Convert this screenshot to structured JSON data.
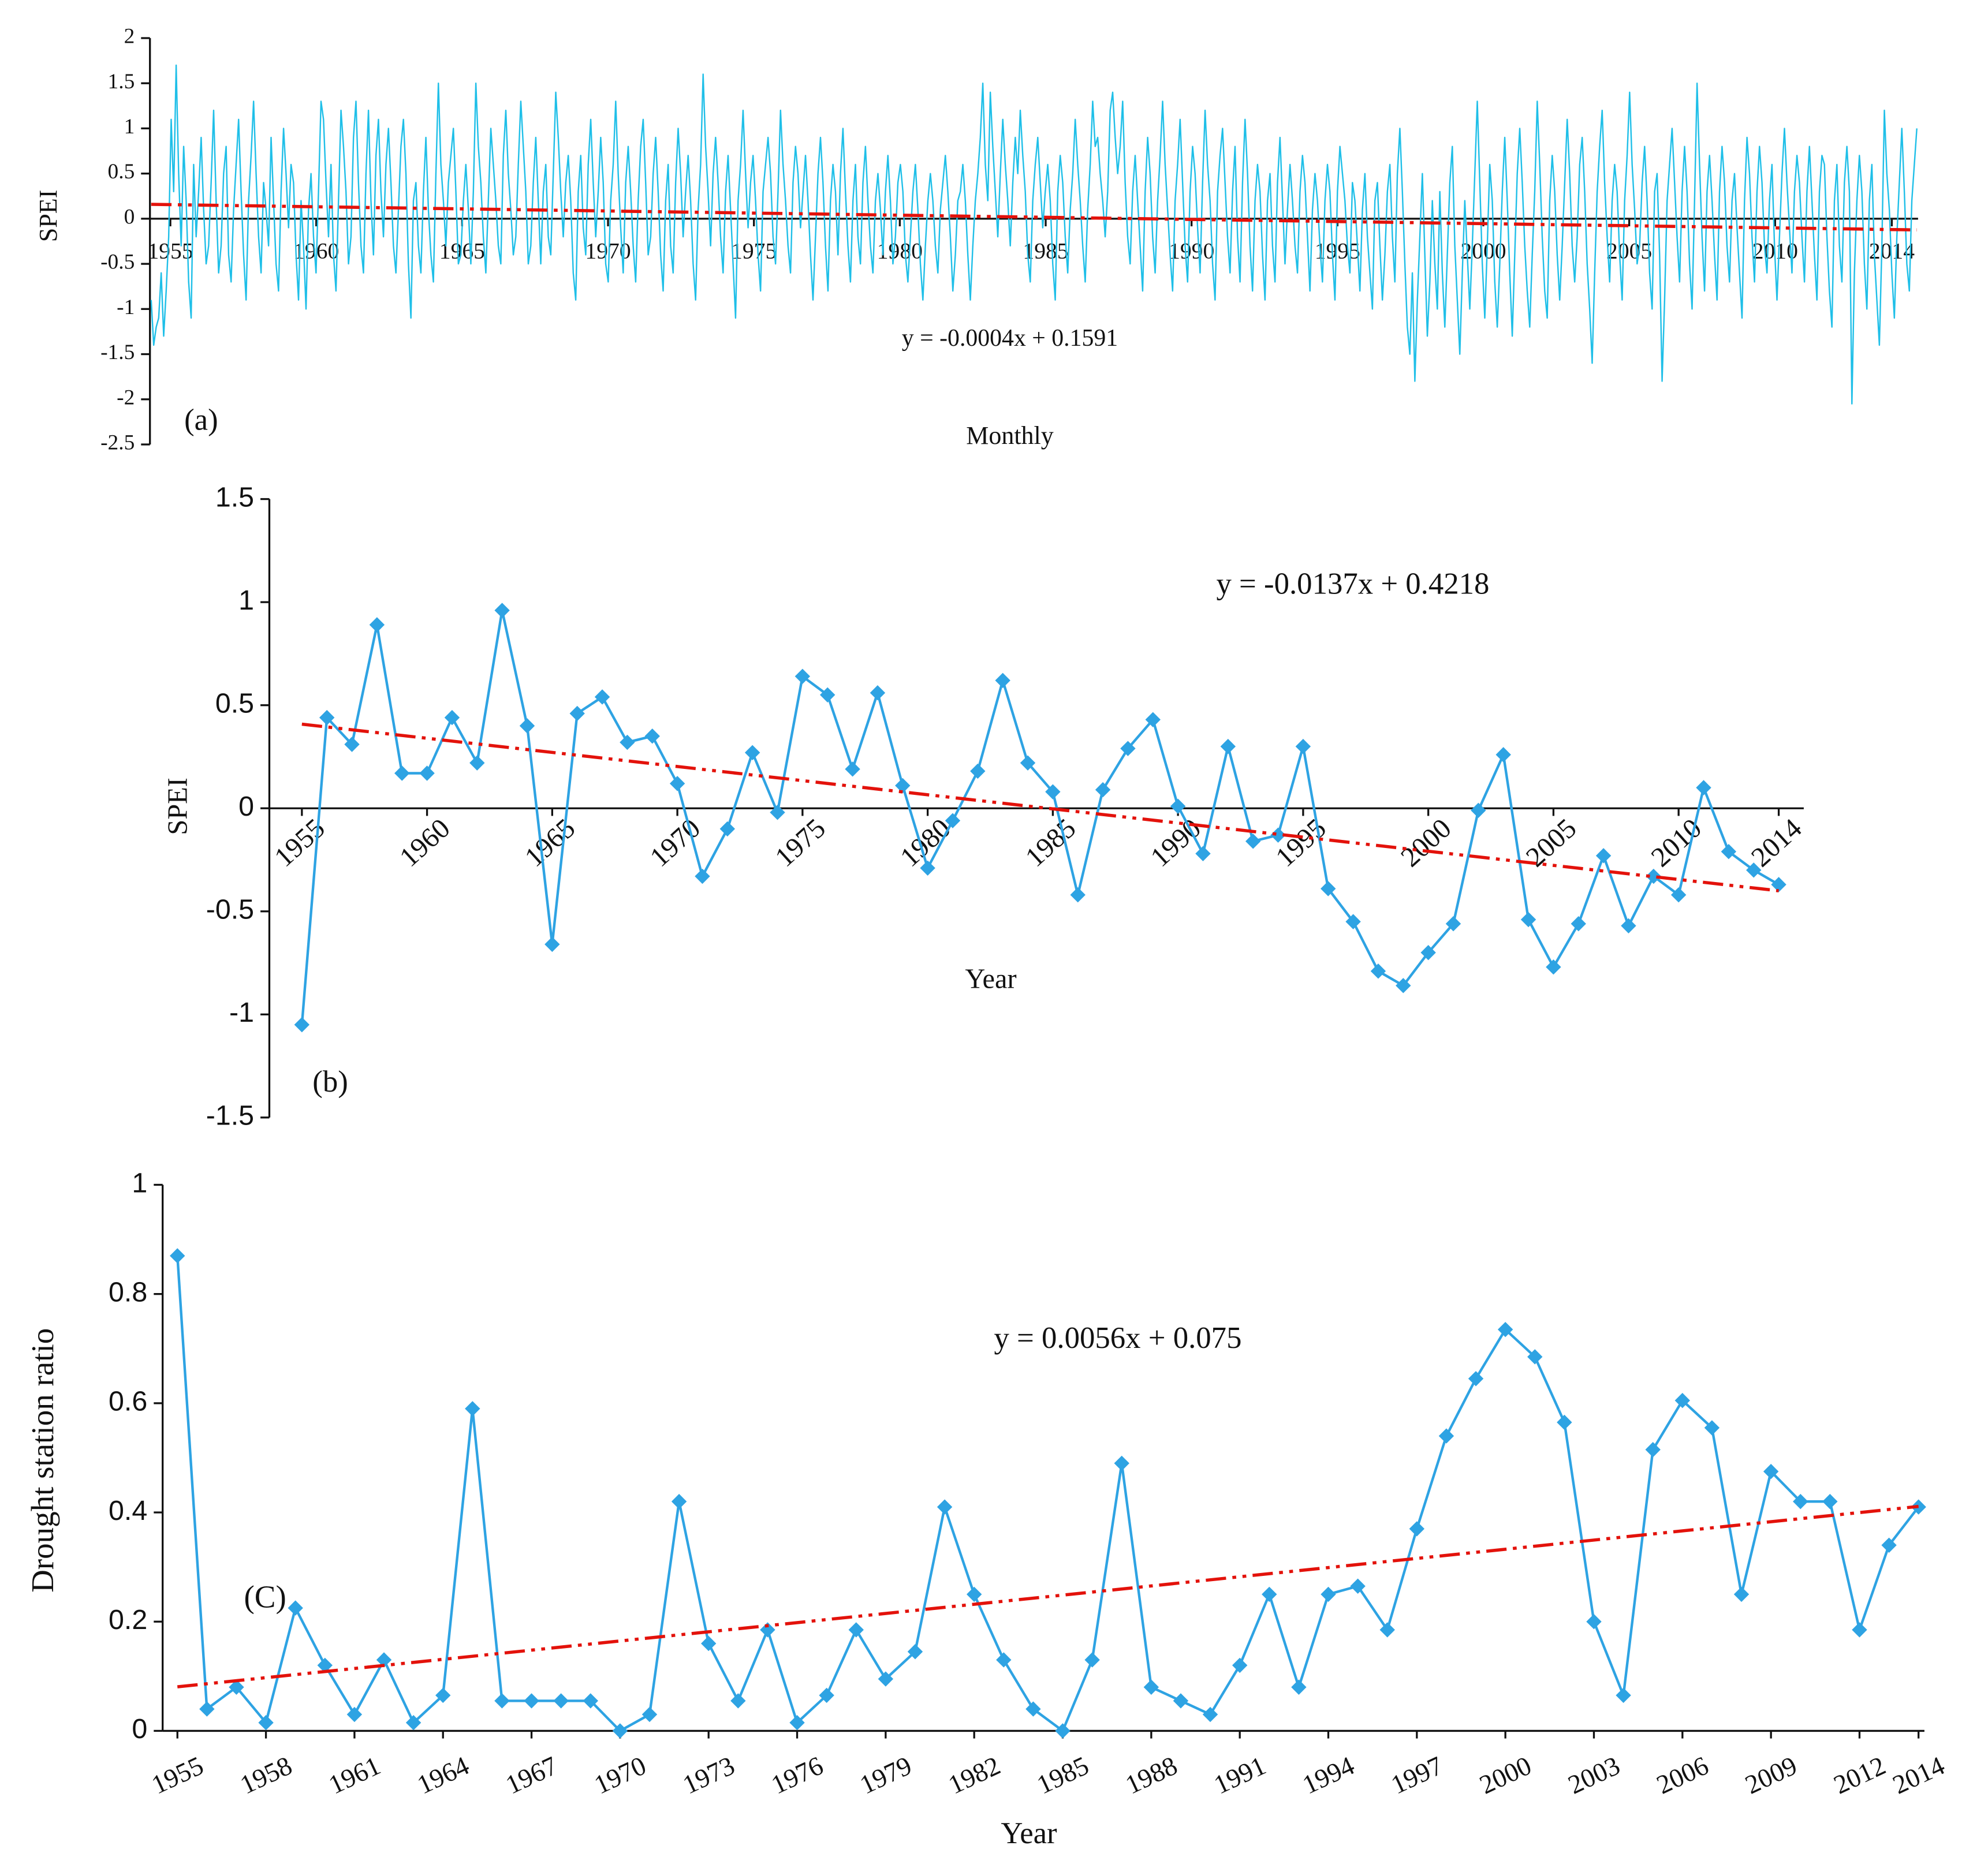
{
  "chart_data": [
    {
      "type": "line",
      "ylabel": "SPEI",
      "xlabel": "Monthly",
      "panel_label": "(a)",
      "equation": "y = -0.0004x + 0.1591",
      "xlim": [
        1954.3,
        2014.9
      ],
      "xticks": [
        1955,
        1960,
        1965,
        1970,
        1975,
        1980,
        1985,
        1990,
        1995,
        2000,
        2005,
        2010,
        2014
      ],
      "ylim": [
        -2.5,
        2
      ],
      "yticks": [
        -2.5,
        -2,
        -1.5,
        -1,
        -0.5,
        0,
        0.5,
        1,
        1.5,
        2
      ],
      "series": [
        {
          "color": "#1fbfe8",
          "values": [
            -0.9,
            -1.4,
            -1.2,
            -1.1,
            -0.6,
            -1.3,
            -0.8,
            -0.2,
            1.1,
            0.3,
            1.7,
            0.5,
            -0.3,
            0.8,
            0.2,
            -0.7,
            -1.1,
            0.6,
            -0.2,
            0.3,
            0.9,
            0.1,
            -0.5,
            -0.3,
            0.4,
            1.2,
            0.2,
            -0.6,
            -0.3,
            0.5,
            0.8,
            -0.4,
            -0.7,
            0.1,
            0.6,
            1.1,
            0.3,
            -0.4,
            -0.9,
            0.2,
            0.7,
            1.3,
            0.5,
            -0.2,
            -0.6,
            0.4,
            0.1,
            -0.3,
            0.9,
            0.2,
            -0.5,
            -0.8,
            0.3,
            1.0,
            0.5,
            -0.1,
            0.6,
            0.4,
            -0.4,
            -0.9,
            0.2,
            -0.3,
            -1.0,
            0.1,
            0.5,
            -0.2,
            -0.6,
            0.3,
            1.3,
            1.1,
            0.4,
            -0.2,
            0.6,
            -0.4,
            -0.8,
            0.2,
            1.2,
            0.8,
            0.3,
            -0.5,
            -0.2,
            0.9,
            1.3,
            0.4,
            -0.3,
            -0.6,
            0.5,
            1.2,
            0.2,
            -0.4,
            0.7,
            1.1,
            0.3,
            -0.2,
            0.6,
            1.0,
            0.4,
            -0.3,
            -0.6,
            0.1,
            0.8,
            1.1,
            0.5,
            -0.5,
            -1.1,
            0.2,
            0.4,
            -0.3,
            -0.6,
            0.3,
            0.9,
            0.1,
            -0.4,
            -0.7,
            0.5,
            1.5,
            0.6,
            0.2,
            -0.3,
            0.4,
            0.7,
            1.0,
            0.3,
            -0.5,
            -0.4,
            0.2,
            0.6,
            0.1,
            -0.5,
            0.3,
            1.5,
            0.8,
            0.4,
            -0.2,
            -0.6,
            0.2,
            1.0,
            0.6,
            0.2,
            -0.3,
            -0.5,
            0.7,
            1.2,
            0.5,
            0.1,
            -0.4,
            -0.2,
            0.6,
            1.3,
            0.8,
            0.3,
            -0.5,
            -0.3,
            0.4,
            0.9,
            0.2,
            -0.5,
            0.3,
            0.6,
            -0.2,
            -0.4,
            0.5,
            1.4,
            0.9,
            0.3,
            -0.2,
            0.4,
            0.7,
            0.2,
            -0.6,
            -0.9,
            0.3,
            0.7,
            -0.1,
            -0.4,
            0.6,
            1.1,
            0.4,
            -0.2,
            0.3,
            0.9,
            0.4,
            -0.5,
            -0.7,
            0.2,
            0.6,
            1.3,
            0.5,
            -0.1,
            -0.6,
            0.4,
            0.8,
            0.3,
            -0.3,
            -0.7,
            0.2,
            0.8,
            1.1,
            0.4,
            -0.4,
            -0.2,
            0.5,
            0.9,
            0.3,
            -0.4,
            -0.8,
            0.2,
            0.6,
            -0.3,
            -0.6,
            0.4,
            1.0,
            0.5,
            -0.2,
            0.3,
            0.7,
            0.2,
            -0.5,
            -0.9,
            0.1,
            0.6,
            1.6,
            0.8,
            0.3,
            -0.3,
            0.5,
            0.9,
            0.4,
            -0.2,
            -0.6,
            0.3,
            0.7,
            0.1,
            -0.5,
            -1.1,
            0.2,
            0.6,
            1.2,
            0.5,
            -0.1,
            0.4,
            0.7,
            0.2,
            -0.4,
            -0.8,
            0.3,
            0.6,
            0.9,
            0.5,
            -0.2,
            -0.5,
            0.3,
            1.2,
            0.6,
            0.2,
            -0.3,
            -0.6,
            0.4,
            0.8,
            0.5,
            -0.1,
            0.3,
            0.7,
            0.2,
            -0.4,
            -0.9,
            -0.2,
            0.5,
            0.9,
            0.4,
            -0.3,
            -0.8,
            0.2,
            0.6,
            0.3,
            -0.4,
            0.5,
            1.0,
            0.3,
            -0.3,
            -0.7,
            0.2,
            0.6,
            -0.2,
            -0.5,
            0.4,
            0.8,
            0.2,
            -0.3,
            -0.6,
            0.2,
            0.5,
            0.1,
            -0.4,
            0.3,
            0.7,
            0.2,
            -0.5,
            -0.2,
            0.4,
            0.6,
            0.3,
            -0.4,
            -0.7,
            -0.2,
            0.3,
            0.6,
            0.1,
            -0.5,
            -0.9,
            -0.3,
            0.2,
            0.5,
            0.2,
            -0.3,
            -0.6,
            0.1,
            0.4,
            0.7,
            0.3,
            -0.2,
            -0.8,
            -0.4,
            0.2,
            0.3,
            0.6,
            0.2,
            -0.4,
            -0.9,
            -0.3,
            0.2,
            0.5,
            0.9,
            1.5,
            0.6,
            0.2,
            1.4,
            0.8,
            0.3,
            -0.2,
            0.5,
            1.1,
            0.6,
            0.2,
            -0.3,
            0.4,
            0.9,
            0.5,
            1.2,
            0.7,
            0.3,
            -0.4,
            -0.7,
            0.2,
            0.6,
            0.9,
            0.4,
            -0.1,
            0.3,
            0.6,
            0.2,
            -0.5,
            -0.9,
            0.3,
            0.7,
            0.4,
            -0.2,
            -0.6,
            0.1,
            0.5,
            1.1,
            0.6,
            0.2,
            -0.3,
            -0.7,
            0.1,
            0.6,
            1.3,
            0.8,
            0.9,
            0.5,
            0.2,
            -0.2,
            0.3,
            1.2,
            1.4,
            0.9,
            0.5,
            0.8,
            1.3,
            0.4,
            -0.2,
            -0.5,
            0.3,
            0.7,
            0.2,
            -0.3,
            -0.8,
            0.3,
            0.9,
            0.5,
            -0.2,
            -0.6,
            0.2,
            0.7,
            1.3,
            0.6,
            0.1,
            -0.4,
            -0.8,
            0.2,
            0.6,
            1.1,
            0.4,
            -0.3,
            -0.7,
            0.3,
            0.8,
            0.5,
            -0.1,
            -0.6,
            0.4,
            1.2,
            0.6,
            0.2,
            -0.5,
            -0.9,
            0.3,
            0.7,
            1.0,
            0.4,
            -0.2,
            -0.6,
            0.3,
            0.8,
            -0.2,
            -0.7,
            0.4,
            1.1,
            0.5,
            -0.3,
            -0.8,
            0.2,
            0.6,
            0.3,
            -0.4,
            -0.9,
            0.2,
            0.5,
            -0.3,
            -0.7,
            0.4,
            0.9,
            0.2,
            -0.5,
            0.1,
            0.6,
            0.2,
            -0.3,
            -0.6,
            0.3,
            0.7,
            0.4,
            -0.2,
            -0.8,
            0.1,
            0.5,
            0.2,
            -0.3,
            -0.7,
            0.2,
            0.6,
            0.3,
            -0.4,
            -0.9,
            0.3,
            0.8,
            0.5,
            0.2,
            -0.3,
            -0.6,
            0.4,
            0.2,
            -0.3,
            -0.8,
            0.1,
            0.5,
            -0.2,
            -0.6,
            -1.0,
            0.2,
            0.4,
            -0.3,
            -0.9,
            -0.4,
            0.3,
            0.6,
            -0.2,
            -0.7,
            0.5,
            1.0,
            0.3,
            -0.5,
            -1.2,
            -1.5,
            -0.6,
            -1.8,
            -0.9,
            -0.2,
            0.5,
            -0.4,
            -1.3,
            -0.7,
            0.2,
            -0.5,
            -1.0,
            0.3,
            -0.6,
            -1.2,
            -0.4,
            0.4,
            0.8,
            -0.3,
            -0.9,
            -1.5,
            -0.6,
            0.2,
            -0.4,
            -1.0,
            -0.3,
            0.5,
            1.3,
            0.4,
            -0.5,
            -1.1,
            -0.3,
            0.6,
            0.2,
            -0.7,
            -1.2,
            -0.5,
            0.3,
            0.9,
            0.2,
            -0.6,
            -1.3,
            -0.4,
            0.5,
            1.0,
            0.4,
            -0.3,
            -0.8,
            -1.2,
            -0.4,
            0.3,
            1.3,
            0.6,
            -0.2,
            -0.8,
            -1.1,
            0.2,
            0.7,
            0.3,
            -0.4,
            -0.9,
            -0.3,
            0.4,
            1.1,
            0.5,
            -0.3,
            -0.7,
            -0.2,
            0.6,
            0.9,
            0.3,
            -0.5,
            -1.0,
            -1.6,
            -0.6,
            0.3,
            0.8,
            1.2,
            0.4,
            -0.2,
            -0.7,
            0.2,
            0.6,
            0.3,
            -0.4,
            -0.9,
            0.2,
            0.7,
            1.4,
            0.6,
            0.1,
            -0.5,
            -0.3,
            0.4,
            0.8,
            0.2,
            -0.6,
            -1.0,
            0.3,
            0.5,
            -0.4,
            -1.8,
            -0.9,
            0.2,
            0.6,
            1.0,
            0.4,
            -0.2,
            -0.7,
            0.3,
            0.8,
            0.3,
            -0.5,
            -1.0,
            0.2,
            1.5,
            0.6,
            -0.2,
            -0.8,
            0.3,
            0.7,
            0.2,
            -0.4,
            -0.9,
            0.3,
            0.8,
            0.4,
            -0.3,
            -0.7,
            0.2,
            0.5,
            -0.1,
            -0.6,
            -1.1,
            0.2,
            0.9,
            0.5,
            -0.2,
            -0.7,
            0.3,
            0.8,
            0.4,
            -0.3,
            -0.6,
            0.2,
            0.6,
            -0.3,
            -0.9,
            -0.2,
            0.5,
            1.0,
            0.4,
            -0.1,
            -0.6,
            0.3,
            0.7,
            0.4,
            -0.2,
            -0.7,
            0.3,
            0.8,
            0.2,
            -0.4,
            -0.9,
            0.3,
            0.7,
            0.6,
            -0.2,
            -0.8,
            -1.2,
            0.2,
            0.6,
            -0.3,
            -0.7,
            0.4,
            0.8,
            0.3,
            -2.05,
            -0.6,
            0.2,
            0.7,
            0.3,
            -0.5,
            -1.0,
            0.2,
            0.6,
            -0.4,
            -0.9,
            -1.4,
            -0.3,
            1.2,
            0.5,
            0.1,
            -0.6,
            -1.1,
            -0.2,
            0.4,
            1.0,
            0.3,
            -0.5,
            -0.8,
            0.2,
            0.6,
            1.0
          ]
        }
      ],
      "trendline": {
        "slope": -0.0004,
        "intercept": 0.1591,
        "color": "#e3120b"
      }
    },
    {
      "type": "line",
      "ylabel": "SPEI",
      "xlabel": "Year",
      "panel_label": "(b)",
      "equation": "y = -0.0137x + 0.4218",
      "xlim": [
        1953.7,
        2015
      ],
      "xticks": [
        1955,
        1960,
        1965,
        1970,
        1975,
        1980,
        1985,
        1990,
        1995,
        2000,
        2005,
        2010,
        2014
      ],
      "ylim": [
        -1.5,
        1.5
      ],
      "yticks": [
        -1.5,
        -1,
        -0.5,
        0,
        0.5,
        1,
        1.5
      ],
      "x": [
        1955,
        1956,
        1957,
        1958,
        1959,
        1960,
        1961,
        1962,
        1963,
        1964,
        1965,
        1966,
        1967,
        1968,
        1969,
        1970,
        1971,
        1972,
        1973,
        1974,
        1975,
        1976,
        1977,
        1978,
        1979,
        1980,
        1981,
        1982,
        1983,
        1984,
        1985,
        1986,
        1987,
        1988,
        1989,
        1990,
        1991,
        1992,
        1993,
        1994,
        1995,
        1996,
        1997,
        1998,
        1999,
        2000,
        2001,
        2002,
        2003,
        2004,
        2005,
        2006,
        2007,
        2008,
        2009,
        2010,
        2011,
        2012,
        2013,
        2014
      ],
      "series": [
        {
          "color": "#2ea3e3",
          "marker": "diamond",
          "values": [
            -1.05,
            0.44,
            0.31,
            0.89,
            0.17,
            0.17,
            0.44,
            0.22,
            0.96,
            0.4,
            -0.66,
            0.46,
            0.54,
            0.32,
            0.35,
            0.12,
            -0.33,
            -0.1,
            0.27,
            -0.02,
            0.64,
            0.55,
            0.19,
            0.56,
            0.11,
            -0.29,
            -0.06,
            0.18,
            0.62,
            0.22,
            0.08,
            -0.42,
            0.09,
            0.29,
            0.43,
            0.01,
            -0.22,
            0.3,
            -0.16,
            -0.13,
            0.3,
            -0.39,
            -0.55,
            -0.79,
            -0.86,
            -0.7,
            -0.56,
            -0.01,
            0.26,
            -0.54,
            -0.77,
            -0.56,
            -0.23,
            -0.57,
            -0.33,
            -0.42,
            0.1,
            -0.21,
            -0.3,
            -0.37
          ]
        }
      ],
      "trendline": {
        "slope": -0.0137,
        "intercept": 0.4218,
        "color": "#e3120b"
      }
    },
    {
      "type": "line",
      "ylabel": "Drought station ratio",
      "xlabel": "Year",
      "panel_label": "(C)",
      "equation": "y = 0.0056x + 0.075",
      "xlim": [
        1954.5,
        2014.2
      ],
      "xticks": [
        1955,
        1958,
        1961,
        1964,
        1967,
        1970,
        1973,
        1976,
        1979,
        1982,
        1985,
        1988,
        1991,
        1994,
        1997,
        2000,
        2003,
        2006,
        2009,
        2012,
        2014
      ],
      "ylim": [
        0,
        1
      ],
      "yticks": [
        0,
        0.2,
        0.4,
        0.6,
        0.8,
        1
      ],
      "x": [
        1955,
        1956,
        1957,
        1958,
        1959,
        1960,
        1961,
        1962,
        1963,
        1964,
        1965,
        1966,
        1967,
        1968,
        1969,
        1970,
        1971,
        1972,
        1973,
        1974,
        1975,
        1976,
        1977,
        1978,
        1979,
        1980,
        1981,
        1982,
        1983,
        1984,
        1985,
        1986,
        1987,
        1988,
        1989,
        1990,
        1991,
        1992,
        1993,
        1994,
        1995,
        1996,
        1997,
        1998,
        1999,
        2000,
        2001,
        2002,
        2003,
        2004,
        2005,
        2006,
        2007,
        2008,
        2009,
        2010,
        2011,
        2012,
        2013,
        2014
      ],
      "series": [
        {
          "color": "#2ea3e3",
          "marker": "diamond",
          "values": [
            0.87,
            0.04,
            0.08,
            0.015,
            0.225,
            0.12,
            0.03,
            0.13,
            0.015,
            0.065,
            0.59,
            0.055,
            0.055,
            0.055,
            0.055,
            0,
            0.03,
            0.42,
            0.16,
            0.055,
            0.185,
            0.015,
            0.065,
            0.185,
            0.095,
            0.145,
            0.41,
            0.25,
            0.13,
            0.04,
            0,
            0.13,
            0.49,
            0.08,
            0.055,
            0.03,
            0.12,
            0.25,
            0.08,
            0.25,
            0.265,
            0.185,
            0.37,
            0.54,
            0.645,
            0.735,
            0.685,
            0.565,
            0.2,
            0.065,
            0.515,
            0.605,
            0.555,
            0.25,
            0.475,
            0.42,
            0.42,
            0.185,
            0.34,
            0.41
          ]
        }
      ],
      "trendline": {
        "slope": 0.0056,
        "intercept": 0.075,
        "color": "#e3120b"
      }
    }
  ]
}
